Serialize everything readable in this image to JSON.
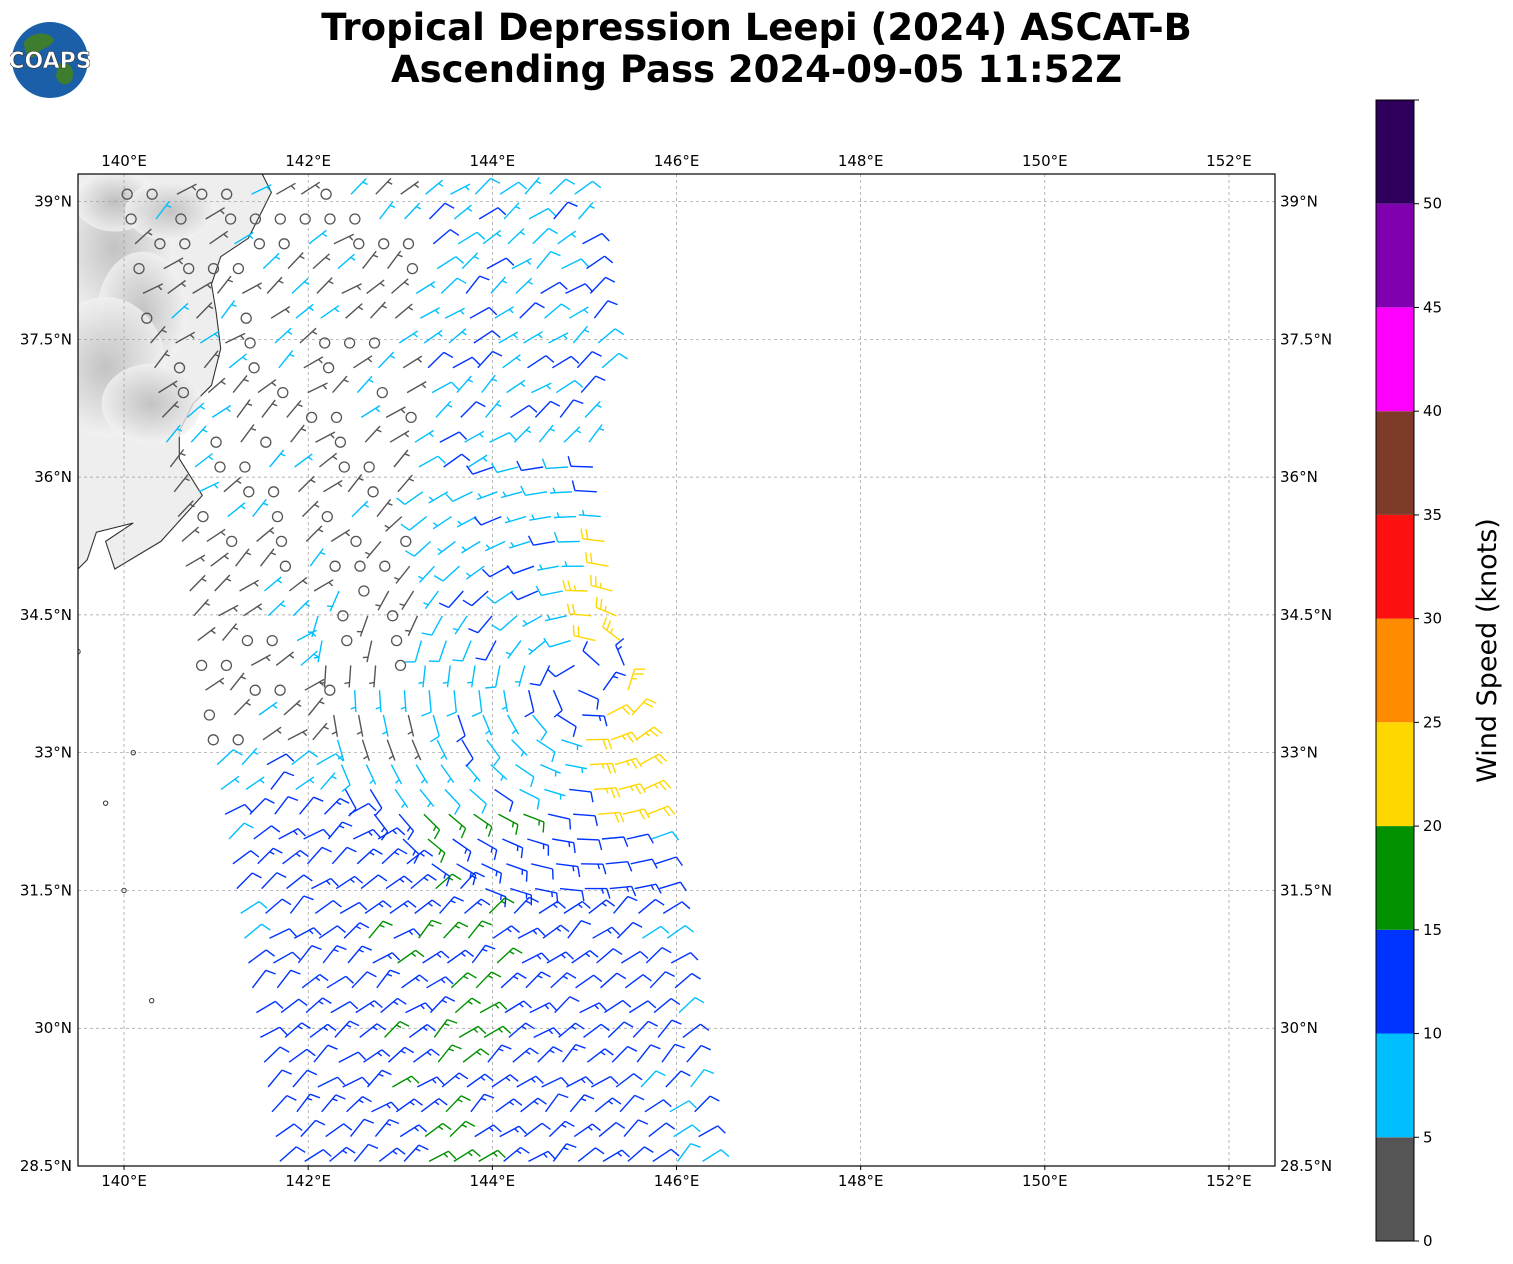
{
  "title": {
    "line1": "Tropical Depression Leepi (2024) ASCAT-B",
    "line2": "Ascending Pass 2024-09-05 11:52Z"
  },
  "logo": {
    "text": "COAPS",
    "icon": "globe-icon",
    "ocean_color": "#1b5fa8",
    "land_color": "#3f7d2e"
  },
  "map": {
    "lon_range": [
      139.5,
      152.5
    ],
    "lat_range": [
      28.5,
      39.3
    ],
    "lon_ticks": [
      {
        "value": 140,
        "label": "140°E"
      },
      {
        "value": 142,
        "label": "142°E"
      },
      {
        "value": 144,
        "label": "144°E"
      },
      {
        "value": 146,
        "label": "146°E"
      },
      {
        "value": 148,
        "label": "148°E"
      },
      {
        "value": 150,
        "label": "150°E"
      },
      {
        "value": 152,
        "label": "152°E"
      }
    ],
    "lat_ticks": [
      {
        "value": 39,
        "label": "39°N"
      },
      {
        "value": 37.5,
        "label": "37.5°N"
      },
      {
        "value": 36,
        "label": "36°N"
      },
      {
        "value": 34.5,
        "label": "34.5°N"
      },
      {
        "value": 33,
        "label": "33°N"
      },
      {
        "value": 31.5,
        "label": "31.5°N"
      },
      {
        "value": 30,
        "label": "30°N"
      },
      {
        "value": 28.5,
        "label": "28.5°N"
      }
    ],
    "gridlines": true,
    "land_shading": "gray relief",
    "swath": {
      "description_free": true,
      "lon_west_south": 141.7,
      "lon_east_south": 146.4,
      "lon_west_north": 140.0,
      "lon_east_north": 144.9
    },
    "circulation_center": {
      "lon": 145.0,
      "lat": 33.8
    }
  },
  "colorbar": {
    "title": "Wind Speed (knots)",
    "bins": [
      {
        "min": 0,
        "max": 5,
        "color": "#555555"
      },
      {
        "min": 5,
        "max": 10,
        "color": "#00bfff"
      },
      {
        "min": 10,
        "max": 15,
        "color": "#0033ff"
      },
      {
        "min": 15,
        "max": 20,
        "color": "#009000"
      },
      {
        "min": 20,
        "max": 25,
        "color": "#ffd700"
      },
      {
        "min": 25,
        "max": 30,
        "color": "#ff8c00"
      },
      {
        "min": 30,
        "max": 35,
        "color": "#ff1010"
      },
      {
        "min": 35,
        "max": 40,
        "color": "#7f3b2a"
      },
      {
        "min": 40,
        "max": 45,
        "color": "#ff00ff"
      },
      {
        "min": 45,
        "max": 50,
        "color": "#8000b0"
      },
      {
        "min": 50,
        "max": 55,
        "color": "#2e005c"
      }
    ],
    "tick_labels": [
      "0",
      "5",
      "10",
      "15",
      "20",
      "25",
      "30",
      "35",
      "40",
      "45",
      "50"
    ]
  }
}
